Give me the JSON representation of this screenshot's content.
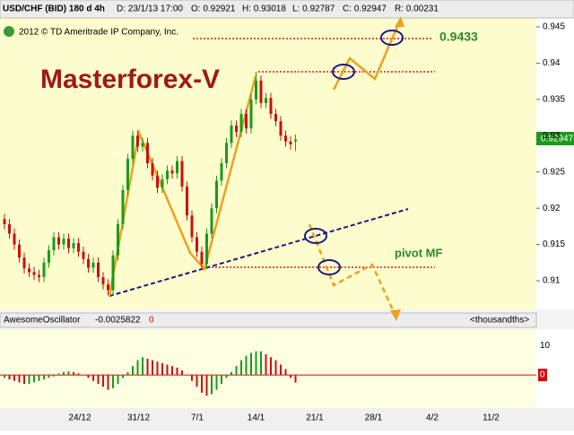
{
  "header": {
    "symbol": "USD/CHF (BID) 180 d 4h",
    "date": "D: 23/1/13 17:00",
    "open": "O: 0.92921",
    "high": "H: 0.93018",
    "low": "L: 0.92787",
    "close": "C: 0.92947",
    "range": "R: 0.00231",
    "copyright": "2012 © TD Ameritrade IP Company, Inc.",
    "last_price": "0.92947"
  },
  "chart_data": [
    {
      "type": "candlestick",
      "title": "Masterforex-V",
      "level_label": "0.9433",
      "pivot_label": "pivot MF",
      "up_color": "#1a9a1a",
      "down_color": "#cc1010",
      "open": [
        0.9185,
        0.9178,
        0.9165,
        0.915,
        0.9132,
        0.9117,
        0.9112,
        0.9108,
        0.9105,
        0.9125,
        0.9142,
        0.916,
        0.915,
        0.9158,
        0.9145,
        0.9152,
        0.914,
        0.913,
        0.9118,
        0.9125,
        0.9105,
        0.9095,
        0.9087,
        0.9135,
        0.9178,
        0.9225,
        0.9268,
        0.93,
        0.9285,
        0.929,
        0.9262,
        0.9245,
        0.9228,
        0.924,
        0.9252,
        0.9248,
        0.9265,
        0.923,
        0.919,
        0.916,
        0.914,
        0.9123,
        0.9165,
        0.92,
        0.9238,
        0.9262,
        0.929,
        0.9314,
        0.9305,
        0.933,
        0.931,
        0.935,
        0.9376,
        0.9345,
        0.9352,
        0.933,
        0.932,
        0.93,
        0.9292,
        0.92921
      ],
      "high": [
        0.9192,
        0.9185,
        0.9172,
        0.9157,
        0.9139,
        0.9124,
        0.9119,
        0.9115,
        0.9132,
        0.9149,
        0.9167,
        0.9167,
        0.9165,
        0.9165,
        0.9159,
        0.9159,
        0.9147,
        0.9137,
        0.9132,
        0.9132,
        0.9112,
        0.9102,
        0.9142,
        0.9185,
        0.9232,
        0.9275,
        0.9307,
        0.9307,
        0.9297,
        0.9297,
        0.9269,
        0.9252,
        0.9247,
        0.9259,
        0.9259,
        0.9272,
        0.9272,
        0.9237,
        0.9197,
        0.9167,
        0.9147,
        0.9172,
        0.9207,
        0.9245,
        0.9269,
        0.9297,
        0.9321,
        0.9321,
        0.9337,
        0.9337,
        0.9357,
        0.9388,
        0.9383,
        0.9359,
        0.9359,
        0.9337,
        0.9327,
        0.9307,
        0.9299,
        0.93018
      ],
      "low": [
        0.9171,
        0.9158,
        0.9143,
        0.9125,
        0.911,
        0.9105,
        0.9101,
        0.9098,
        0.9098,
        0.9118,
        0.9135,
        0.9143,
        0.9143,
        0.9138,
        0.9138,
        0.9133,
        0.9123,
        0.9111,
        0.9111,
        0.9098,
        0.9088,
        0.908,
        0.908,
        0.9128,
        0.9171,
        0.9218,
        0.9261,
        0.9278,
        0.9278,
        0.9255,
        0.9238,
        0.9221,
        0.9221,
        0.9233,
        0.9241,
        0.9241,
        0.9223,
        0.9183,
        0.9153,
        0.9133,
        0.9116,
        0.9116,
        0.9158,
        0.9193,
        0.9231,
        0.9255,
        0.9283,
        0.9298,
        0.9298,
        0.9303,
        0.9303,
        0.9343,
        0.9338,
        0.9338,
        0.9323,
        0.9313,
        0.9293,
        0.9285,
        0.9281,
        0.92787
      ],
      "close": [
        0.9178,
        0.9165,
        0.915,
        0.9132,
        0.9117,
        0.9112,
        0.9108,
        0.9105,
        0.9125,
        0.9142,
        0.916,
        0.915,
        0.9158,
        0.9145,
        0.9152,
        0.914,
        0.913,
        0.9118,
        0.9125,
        0.9105,
        0.9095,
        0.9087,
        0.9135,
        0.9178,
        0.9225,
        0.9268,
        0.93,
        0.9285,
        0.929,
        0.9262,
        0.9245,
        0.9228,
        0.924,
        0.9252,
        0.9248,
        0.9265,
        0.923,
        0.919,
        0.916,
        0.914,
        0.9123,
        0.9165,
        0.92,
        0.9238,
        0.9262,
        0.929,
        0.9314,
        0.9305,
        0.933,
        0.931,
        0.935,
        0.9376,
        0.9345,
        0.9352,
        0.933,
        0.932,
        0.93,
        0.9292,
        0.9288,
        0.92947
      ],
      "ylim": [
        0.90605,
        0.94623
      ],
      "yticks": [
        0.945,
        0.94,
        0.935,
        0.93,
        0.925,
        0.92,
        0.915,
        0.91
      ],
      "x_labels": [
        "24/12",
        "31/12",
        "7/1",
        "14/1",
        "21/1",
        "28/1",
        "4/2",
        "11/2"
      ]
    },
    {
      "type": "bar",
      "title": "AwesomeOscillator",
      "value_label": "-0.0025822",
      "flag": "0",
      "unit_label": "<thousandths>",
      "up_color": "#1a9a1a",
      "down_color": "#cc1010",
      "values": [
        -1,
        -1.5,
        -2,
        -2.5,
        -3,
        -3,
        -2.5,
        -2,
        -1.5,
        -1,
        -0.5,
        0.5,
        1,
        1.2,
        1,
        0.5,
        0,
        -1,
        -2,
        -3,
        -4,
        -5,
        -4.5,
        -3,
        -1,
        1,
        3,
        5,
        6,
        5.5,
        5,
        4.5,
        4,
        3.5,
        3,
        2.5,
        1.5,
        0,
        -2,
        -4,
        -6,
        -7,
        -6.5,
        -5,
        -3,
        -1,
        1,
        3,
        5,
        6.5,
        7.5,
        8,
        8,
        7,
        6,
        5,
        3.5,
        2,
        -1,
        -2.58
      ],
      "ylim": [
        -11.2,
        15.5
      ],
      "yticks": [
        10,
        0
      ]
    }
  ]
}
